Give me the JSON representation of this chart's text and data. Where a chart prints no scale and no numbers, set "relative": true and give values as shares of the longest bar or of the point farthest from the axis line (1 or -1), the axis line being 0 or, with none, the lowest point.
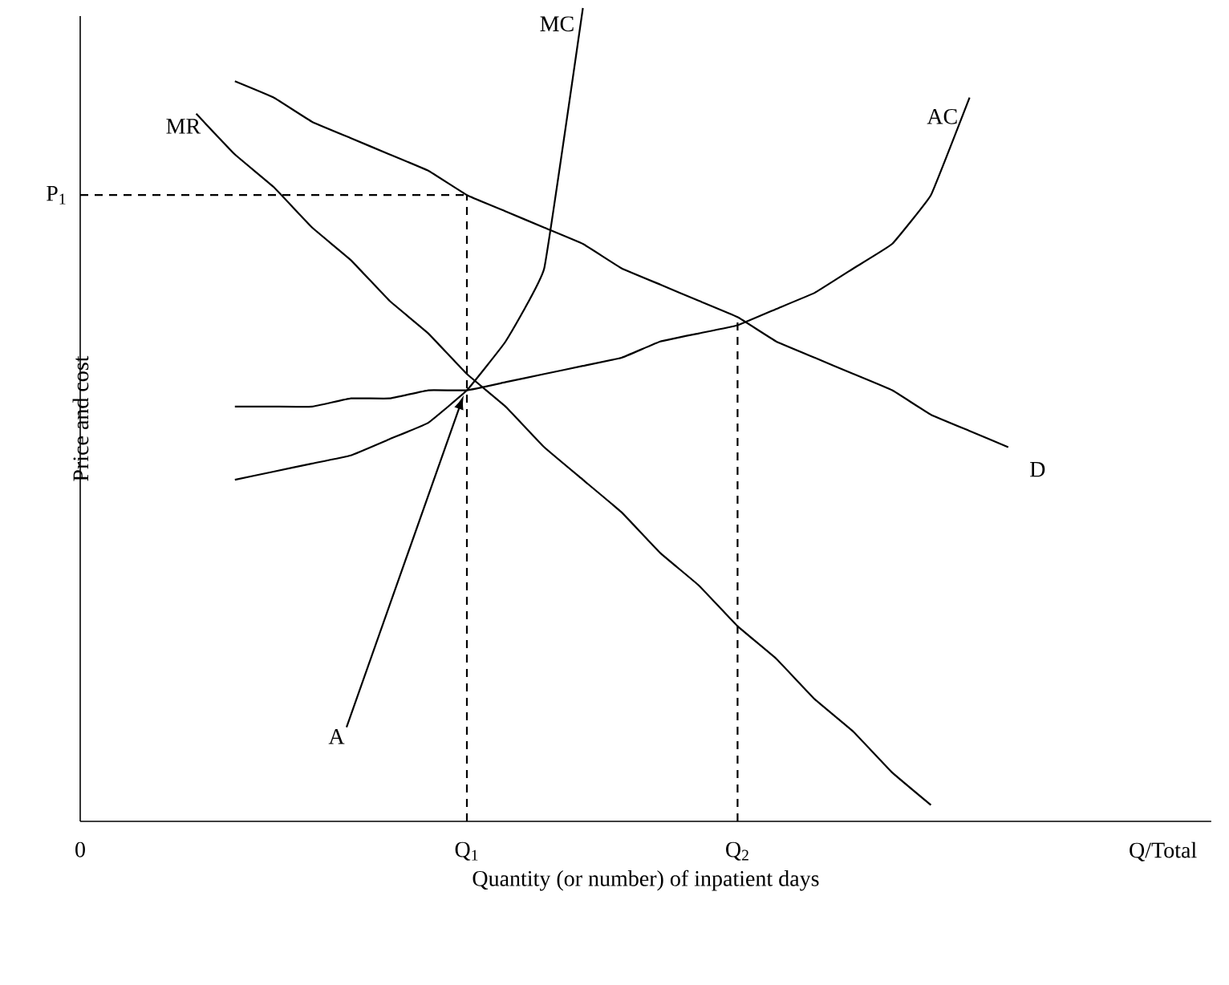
{
  "chart_data": {
    "type": "line",
    "relative": true,
    "legend": false,
    "grid": false,
    "xlabel": "Quantity (or number) of inpatient days",
    "ylabel": "Price and cost",
    "categories": [
      "0",
      null,
      null,
      null,
      null,
      null,
      null,
      null,
      null,
      null,
      "Q$_{1}$",
      null,
      null,
      null,
      null,
      null,
      null,
      "Q$_{2}$",
      null,
      null,
      null,
      null,
      null,
      null,
      null,
      null,
      null,
      null,
      "Q/Total",
      null
    ],
    "series": [
      {
        "name": "MR",
        "color": "#000000",
        "values": [
          null,
          null,
          null,
          0.87,
          0.82,
          0.78,
          0.73,
          0.69,
          0.64,
          0.6,
          0.55,
          0.51,
          0.46,
          0.42,
          0.38,
          0.33,
          0.29,
          0.24,
          0.2,
          0.15,
          0.11,
          0.06,
          0.02,
          null,
          null,
          null,
          null,
          null,
          null,
          null
        ]
      },
      {
        "name": "MC",
        "color": "#000000",
        "values": [
          null,
          null,
          null,
          null,
          0.42,
          0.43,
          0.44,
          0.45,
          0.47,
          0.49,
          0.53,
          0.59,
          0.68,
          1.0,
          null,
          null,
          null,
          null,
          null,
          null,
          null,
          null,
          null,
          null,
          null,
          null,
          null,
          null,
          null,
          null
        ]
      },
      {
        "name": "AC",
        "color": "#000000",
        "values": [
          null,
          null,
          null,
          null,
          0.51,
          0.51,
          0.51,
          0.52,
          0.52,
          0.53,
          0.53,
          0.54,
          0.55,
          0.56,
          0.57,
          0.59,
          0.6,
          0.61,
          0.63,
          0.65,
          0.68,
          0.71,
          0.77,
          0.89,
          null,
          null,
          null,
          null,
          null,
          null
        ]
      },
      {
        "name": "D",
        "color": "#000000",
        "values": [
          null,
          null,
          null,
          null,
          0.91,
          0.89,
          0.86,
          0.84,
          0.82,
          0.8,
          0.77,
          0.75,
          0.73,
          0.71,
          0.68,
          0.66,
          0.64,
          0.62,
          0.59,
          0.57,
          0.55,
          0.53,
          0.5,
          0.48,
          0.46,
          null,
          null,
          null,
          null,
          null
        ]
      },
      {
        "color": "#000000",
        "line_style": "dashed",
        "values": [
          0.77,
          0.77,
          0.77,
          0.77,
          0.77,
          0.77,
          0.77,
          0.77,
          0.77,
          0.77,
          0.77,
          null,
          null,
          null,
          null,
          null,
          null,
          null,
          null,
          null,
          null,
          null,
          null,
          null,
          null,
          null,
          null,
          null,
          null,
          null
        ]
      }
    ],
    "ref_lines": [
      {
        "axis": "x",
        "value": "Q$_{1}$",
        "line_style": "dashed",
        "color": "#000000"
      },
      {
        "axis": "x",
        "value": "Q$_{2}$",
        "line_style": "dashed",
        "color": "#000000"
      }
    ],
    "annotations": [
      {
        "text": "P$_{1}$",
        "x": "0",
        "y": 0.77
      },
      "A"
    ]
  }
}
